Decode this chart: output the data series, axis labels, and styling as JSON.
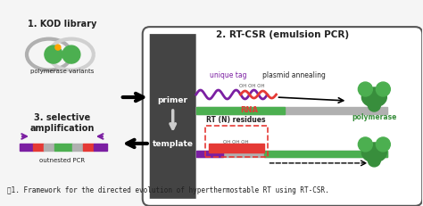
{
  "title": "2. RT-CSR (emulsion PCR)",
  "caption": "图1. Framework for the directed evolution of hyperthermostable RT using RT-CSR.",
  "bg_color": "#f5f5f5",
  "white": "#ffffff",
  "black": "#000000",
  "green": "#4caf50",
  "dark_green": "#388e3c",
  "gray": "#b0b0b0",
  "light_gray": "#d0d0d0",
  "red": "#e53935",
  "purple": "#7b1fa2",
  "dark_gray": "#555555",
  "arrow_color": "#888888",
  "text_color": "#222222",
  "label1": "1. KOD library",
  "label1b": "polymerase variants",
  "label3": "3. selective\namplification",
  "label3b": "outnested PCR",
  "label_primer": "primer",
  "label_template": "template",
  "label_unique": "unique tag",
  "label_plasmid": "plasmid annealing",
  "label_rna": "RNA",
  "label_polymerase": "polymerase",
  "label_rt": "RT (N) residues",
  "label_ohoh": "OH OH OH"
}
